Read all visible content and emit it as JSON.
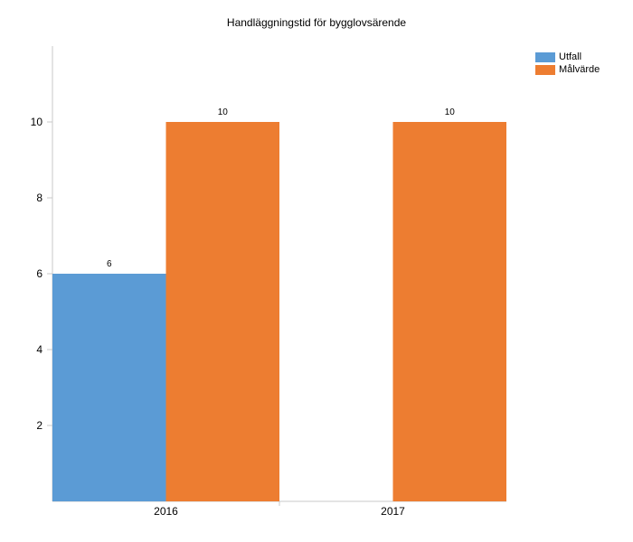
{
  "chart_data": {
    "type": "bar",
    "title": "Handläggningstid för bygglovsärende",
    "categories": [
      "2016",
      "2017"
    ],
    "series": [
      {
        "name": "Utfall",
        "color": "#5b9bd5",
        "values": [
          6,
          null
        ]
      },
      {
        "name": "Målvärde",
        "color": "#ed7d31",
        "values": [
          10,
          10
        ]
      }
    ],
    "data_labels": [
      [
        "6",
        ""
      ],
      [
        "10",
        "10"
      ]
    ],
    "y_ticks": [
      2,
      4,
      6,
      8,
      10
    ],
    "ylim": [
      0,
      12
    ],
    "xlabel": "",
    "ylabel": "",
    "legend_position": "top-right",
    "grid": false
  }
}
